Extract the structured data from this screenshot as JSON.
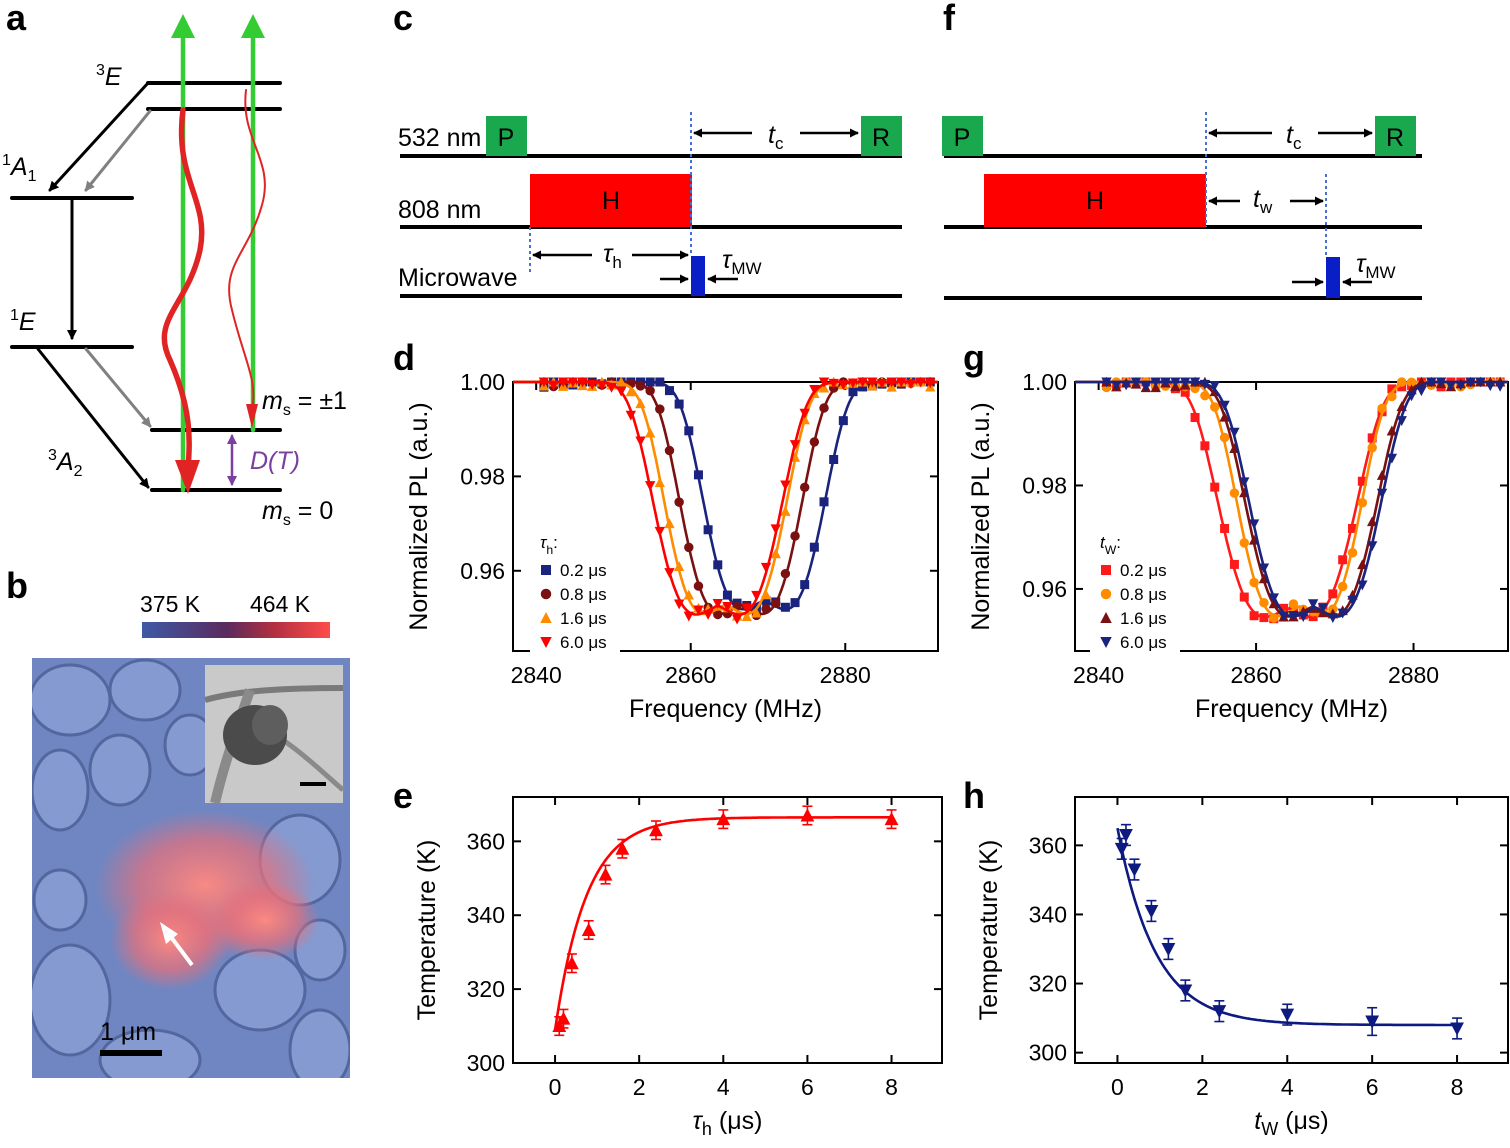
{
  "panels": {
    "a": "a",
    "b": "b",
    "c": "c",
    "d": "d",
    "e": "e",
    "f": "f",
    "g": "g",
    "h": "h"
  },
  "energy": {
    "levels": [
      "3",
      "E",
      "1",
      "A",
      "1",
      "1",
      "E",
      "3",
      "A",
      "2"
    ],
    "ms_pm1": "m",
    "ms_pm1_sub": "s",
    "ms_pm1_val": " = ±1",
    "ms0": "m",
    "ms0_sub": "s",
    "ms0_val": " = 0",
    "DT": "D(T)"
  },
  "thermo": {
    "low": "375 K",
    "high": "464 K",
    "scale": "1 μm",
    "colors": {
      "cold": "#3d5aa6",
      "hot": "#ff4b4b"
    }
  },
  "sequence": {
    "c": {
      "rows": [
        "532 nm",
        "808 nm",
        "Microwave"
      ],
      "P": "P",
      "R": "R",
      "H": "H",
      "tc": "t",
      "tc_sub": "c",
      "tauh": "τ",
      "tauh_sub": "h",
      "taumw": "τ",
      "taumw_sub": "MW"
    },
    "f": {
      "P": "P",
      "R": "R",
      "H": "H",
      "tc": "t",
      "tc_sub": "c",
      "tw": "t",
      "tw_sub": "w",
      "taumw": "τ",
      "taumw_sub": "MW"
    },
    "colors": {
      "laser532": "#1aa84f",
      "laser808": "#ff0000",
      "microwave": "#0a1ec8"
    }
  },
  "chart_data": [
    {
      "panel": "d",
      "type": "scatter",
      "xlabel": "Frequency (MHz)",
      "ylabel": "Normalized PL (a.u.)",
      "xlim": [
        2837,
        2892
      ],
      "ylim": [
        0.943,
        1.0
      ],
      "xticks": [
        2840,
        2860,
        2880
      ],
      "yticks": [
        0.96,
        0.98,
        1.0
      ],
      "ytick_labels": [
        "0.96",
        "0.98",
        "1.00"
      ],
      "legend_title": "τ",
      "legend_title_sub": "h",
      "legend_title_suffix": ":",
      "series": [
        {
          "name": "0.2 μs",
          "color": "#1a237e",
          "marker": "square",
          "center": 2869.5,
          "depth": 0.049,
          "halfwidth": 8.5
        },
        {
          "name": "0.8 μs",
          "color": "#7b1010",
          "marker": "circle",
          "center": 2866.5,
          "depth": 0.05,
          "halfwidth": 8.5
        },
        {
          "name": "1.6 μs",
          "color": "#ff8c00",
          "marker": "triangle-up",
          "center": 2864.5,
          "depth": 0.05,
          "halfwidth": 8.5
        },
        {
          "name": "6.0 μs",
          "color": "#ff0000",
          "marker": "triangle-down",
          "center": 2863.5,
          "depth": 0.05,
          "halfwidth": 9.0
        }
      ]
    },
    {
      "panel": "g",
      "type": "scatter",
      "xlabel": "Frequency (MHz)",
      "ylabel": "Normalized PL (a.u.)",
      "xlim": [
        2837,
        2892
      ],
      "ylim": [
        0.948,
        1.0
      ],
      "xticks": [
        2840,
        2860,
        2880
      ],
      "yticks": [
        0.96,
        0.98,
        1.0
      ],
      "ytick_labels": [
        "0.96",
        "0.98",
        "1.00"
      ],
      "legend_title": "t",
      "legend_title_sub": "W",
      "legend_title_suffix": ":",
      "series": [
        {
          "name": "0.2 μs",
          "color": "#ff1a1a",
          "marker": "square",
          "center": 2864.0,
          "depth": 0.046,
          "halfwidth": 9.5
        },
        {
          "name": "0.8 μs",
          "color": "#ff8c00",
          "marker": "circle",
          "center": 2865.5,
          "depth": 0.046,
          "halfwidth": 8.5
        },
        {
          "name": "1.6 μs",
          "color": "#7b1010",
          "marker": "triangle-up",
          "center": 2867.0,
          "depth": 0.046,
          "halfwidth": 9.0
        },
        {
          "name": "6.0 μs",
          "color": "#1a237e",
          "marker": "triangle-down",
          "center": 2867.5,
          "depth": 0.046,
          "halfwidth": 9.0
        }
      ]
    },
    {
      "panel": "e",
      "type": "scatter",
      "xlabel": "τ",
      "xlabel_sub": "h",
      "xlabel_suffix": " (μs)",
      "ylabel": "Temperature (K)",
      "xlim": [
        -1,
        9.2
      ],
      "ylim": [
        300,
        372
      ],
      "xticks": [
        0,
        2,
        4,
        6,
        8
      ],
      "yticks": [
        300,
        320,
        340,
        360
      ],
      "color": "#ff0000",
      "marker": "triangle-up",
      "x": [
        0.1,
        0.2,
        0.4,
        0.8,
        1.2,
        1.6,
        2.4,
        4.0,
        6.0,
        8.0
      ],
      "y": [
        310,
        312,
        327,
        336,
        351,
        358,
        363,
        366,
        367,
        366
      ],
      "err": [
        2.5,
        2.5,
        2.5,
        2.5,
        2.5,
        2.5,
        2.5,
        2.5,
        2.5,
        2.5
      ],
      "fit": {
        "model": "rise",
        "T0": 309,
        "Tinf": 366.5,
        "tau": 0.75
      }
    },
    {
      "panel": "h",
      "type": "scatter",
      "xlabel": "t",
      "xlabel_sub": "W",
      "xlabel_suffix": " (μs)",
      "ylabel": "Temperature (K)",
      "xlim": [
        -1,
        9.2
      ],
      "ylim": [
        297,
        374
      ],
      "xticks": [
        0,
        2,
        4,
        6,
        8
      ],
      "yticks": [
        300,
        320,
        340,
        360
      ],
      "color": "#0d1a80",
      "marker": "triangle-down",
      "x": [
        0.1,
        0.2,
        0.4,
        0.8,
        1.2,
        1.6,
        2.4,
        4.0,
        6.0,
        8.0
      ],
      "y": [
        359,
        363,
        353,
        341,
        330,
        318,
        312,
        311,
        309,
        307
      ],
      "err": [
        3,
        3,
        3,
        3,
        3,
        3,
        3,
        3,
        4,
        3
      ],
      "fit": {
        "model": "decay",
        "T0": 365,
        "Tinf": 308,
        "tau": 0.9
      }
    }
  ]
}
